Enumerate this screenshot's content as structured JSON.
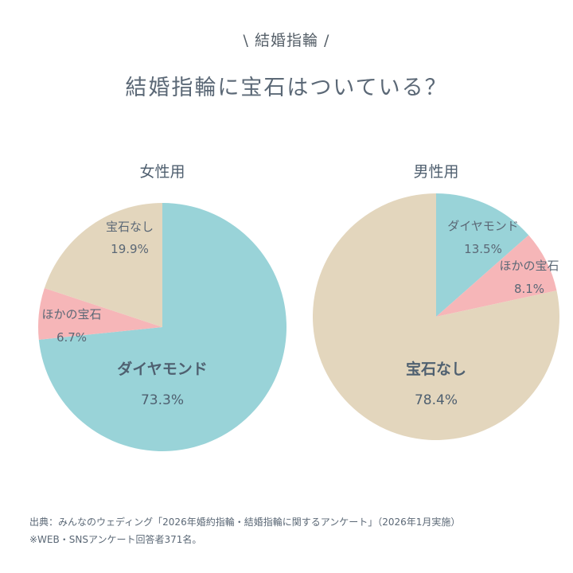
{
  "header": {
    "tag": "\\ 結婚指輪 /",
    "title": "結婚指輪に宝石はついている？"
  },
  "chart_data": [
    {
      "type": "pie",
      "title": "女性用",
      "slices": [
        {
          "label": "ダイヤモンド",
          "value": 73.3,
          "display": "73.3%",
          "color": "#99d3d8"
        },
        {
          "label": "ほかの宝石",
          "value": 6.7,
          "display": "6.7%",
          "color": "#f6b6b8"
        },
        {
          "label": "宝石なし",
          "value": 19.9,
          "display": "19.9%",
          "color": "#e3d6bd"
        }
      ]
    },
    {
      "type": "pie",
      "title": "男性用",
      "slices": [
        {
          "label": "ダイヤモンド",
          "value": 13.5,
          "display": "13.5%",
          "color": "#99d3d8"
        },
        {
          "label": "ほかの宝石",
          "value": 8.1,
          "display": "8.1%",
          "color": "#f6b6b8"
        },
        {
          "label": "宝石なし",
          "value": 78.4,
          "display": "78.4%",
          "color": "#e3d6bd"
        }
      ]
    }
  ],
  "footer": {
    "source": "出典：みんなのウェディング「2026年婚約指輪・結婚指輪に関するアンケート」（2026年1月実施）",
    "note": "※WEB・SNSアンケート回答者371名。"
  }
}
